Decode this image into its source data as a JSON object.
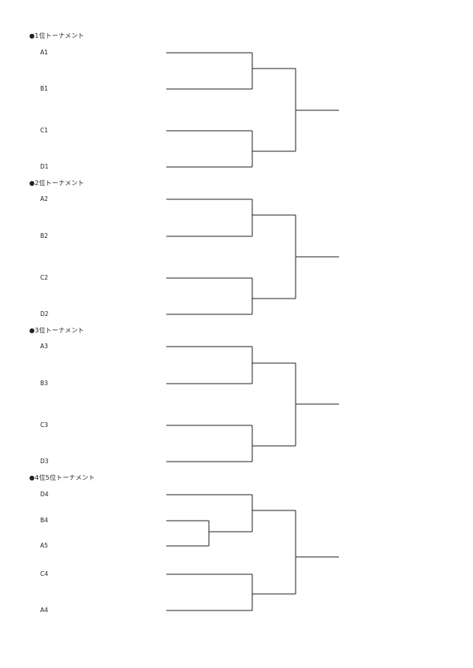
{
  "sections": [
    {
      "title": "●1位トーナメント",
      "teams": [
        "A1",
        "B1",
        "C1",
        "D1"
      ]
    },
    {
      "title": "●2位トーナメント",
      "teams": [
        "A2",
        "B2",
        "C2",
        "D2"
      ]
    },
    {
      "title": "●3位トーナメント",
      "teams": [
        "A3",
        "B3",
        "C3",
        "D3"
      ]
    },
    {
      "title": "●4位5位トーナメント",
      "teams": [
        "D4",
        "B4",
        "A5",
        "C4",
        "A4"
      ]
    }
  ]
}
